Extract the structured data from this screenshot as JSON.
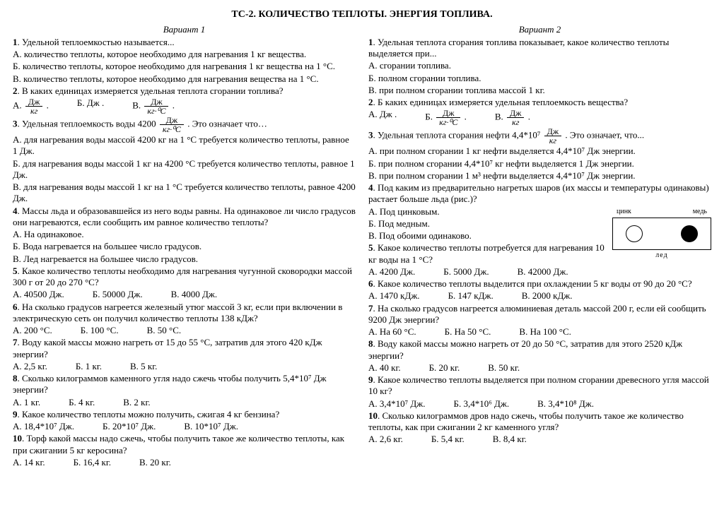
{
  "title": "ТС-2. КОЛИЧЕСТВО ТЕПЛОТЫ. ЭНЕРГИЯ ТОПЛИВА.",
  "v1": {
    "heading": "Вариант 1",
    "q1": "Удельной теплоемкостью называется...",
    "q1a": "А. количество теплоты, которое необходимо для нагревания 1 кг вещества.",
    "q1b": "Б. количество теплоты, которое необходимо для нагревания 1 кг вещества на 1 °С.",
    "q1c": "В. количество теплоты, которое необходимо для нагревания вещества на 1 °С.",
    "q2": "В каких единицах измеряется удельная теплота сгорании топлива?",
    "q2a_pre": "А.",
    "q2a_num": "Дж",
    "q2a_den": "кг",
    "q2b": "Б.  Дж .",
    "q2c_pre": "В.",
    "q2c_num": "Дж",
    "q2c_den": "кг·⁰С",
    "q3_pre": "Удельная теплоемкость воды 4200",
    "q3_num": "Дж",
    "q3_den": "кг·⁰С",
    "q3_post": ". Это означает что…",
    "q3a": "А. для нагревания воды массой 4200 кг на 1 °С требуется количество теплоты, равное 1 Дж.",
    "q3b": "Б. для нагревания воды массой 1 кг на 4200 °С требуется количество теплоты, равное 1 Дж.",
    "q3c": "В. для нагревания воды массой 1 кг на 1 °С требуется количество теплоты, равное 4200 Дж.",
    "q4": "Массы льда и образовавшейся из него воды равны. На одинаковое ли число градусов они нагреваются, если сообщить им равное количество теплоты?",
    "q4a": "А. На одинаковое.",
    "q4b": "Б. Вода нагревается на большее число градусов.",
    "q4c": "В. Лед нагревается на большее число градусов.",
    "q5": "Какое количество теплоты необходимо для нагревания чугунной сковородки массой 300 г от 20 до 270 °С?",
    "q5a": "А. 40500 Дж.",
    "q5b": "Б. 50000 Дж.",
    "q5c": "В. 4000 Дж.",
    "q6": "На сколько градусов нагреется железный утюг массой 3 кг, если при включении в электрическую сеть он получил количество теплоты 138 кДж?",
    "q6a": "А. 200 °С.",
    "q6b": "Б. 100 °С.",
    "q6c": "В. 50 °С.",
    "q7": "Воду какой массы можно нагреть от 15 до 55 °С, затратив для этого 420 кДж энергии?",
    "q7a": "А. 2,5 кг.",
    "q7b": "Б. 1 кг.",
    "q7c": "В. 5 кг.",
    "q8": "Сколько килограммов каменного угля надо сжечь чтобы получить 5,4*10⁷ Дж энергии?",
    "q8a": "А. 1 кг.",
    "q8b": "Б. 4 кг.",
    "q8c": "В. 2 кг.",
    "q9": "Какое количество теплоты можно получить, сжигая 4 кг бензина?",
    "q9a": "А. 18,4*10⁷ Дж.",
    "q9b": "Б. 20*10⁷ Дж.",
    "q9c": "В. 10*10⁷ Дж.",
    "q10": "Торф какой массы надо сжечь, чтобы получить такое же количество теплоты, как при сжигании 5 кг керосина?",
    "q10a": "А. 14 кг.",
    "q10b": "Б. 16,4 кг.",
    "q10c": "В. 20 кг."
  },
  "v2": {
    "heading": "Вариант 2",
    "q1": "Удельная теплота сгорания топлива показывает, какое количество теплоты выделяется при...",
    "q1a": "А. сгорании топлива.",
    "q1b": "Б. полном сгорании топлива.",
    "q1c": "В. при полном сгорании топлива массой 1 кг.",
    "q2": "Б каких единицах измеряется удельная теплоемкость вещества?",
    "q2a": "А.  Дж .",
    "q2b_pre": "Б.",
    "q2b_num": "Дж",
    "q2b_den": "кг·⁰С",
    "q2c_pre": "В.",
    "q2c_num": "Дж",
    "q2c_den": "кг",
    "q3_pre": "Удельная теплота сгорания нефти 4,4*10⁷",
    "q3_num": "Дж",
    "q3_den": "кг",
    "q3_post": ". Это означает, что...",
    "q3a": "А. при полном сгорании 1 кг нефти выделяется 4,4*10⁷ Дж энергии.",
    "q3b": "Б. при полном сгорании 4,4*10⁷ кг нефти выделяется 1 Дж энергии.",
    "q3c": "В. при полном сгорании 1 м³ нефти выделяется 4,4*10⁷ Дж энергии.",
    "q4": "Под каким из предварительно нагретых шаров (их массы и температуры одинаковы) растает больше льда (рис.)?",
    "q4a": "А. Под цинковым.",
    "q4b": "Б. Под медным.",
    "q4c": "В. Под обоими одинаково.",
    "fig_l": "цинк",
    "fig_r": "медь",
    "fig_led": "лед",
    "q5": "Какое количество теплоты потребуется для нагревания 10 кг воды на 1 °С?",
    "q5a": "А. 4200 Дж.",
    "q5b": "Б. 5000 Дж.",
    "q5c": "В. 42000 Дж.",
    "q6": "Какое количество теплоты выделится при охлаждении 5 кг воды от 90 до 20 °С?",
    "q6a": "А. 1470 кДж.",
    "q6b": "Б. 147 кДж.",
    "q6c": "В. 2000 кДж.",
    "q7": "На сколько градусов нагреется алюминиевая деталь массой 200 г, если ей сообщить 9200 Дж энергии?",
    "q7a": "А. На 60 °С.",
    "q7b": "Б. На 50 °С.",
    "q7c": "В. На 100 °С.",
    "q8": "Воду какой массы можно нагреть от 20 до 50 °С, затратив для этого 2520 кДж энергии?",
    "q8a": "А. 40 кг.",
    "q8b": "Б. 20 кг.",
    "q8c": "В. 50 кг.",
    "q9": "Какое количество теплоты выделяется при полном сгорании древесного угля массой 10 кг?",
    "q9a": "А. 3,4*10⁷ Дж.",
    "q9b": "Б. 3,4*10⁶ Дж.",
    "q9c": "В. 3,4*10⁸ Дж.",
    "q10": "Сколько килограммов дров надо сжечь, чтобы получить такое же количество теплоты, как при сжигании 2 кг каменного угля?",
    "q10a": "А. 2,6 кг.",
    "q10b": "Б. 5,4 кг.",
    "q10c": "В. 8,4 кг."
  }
}
